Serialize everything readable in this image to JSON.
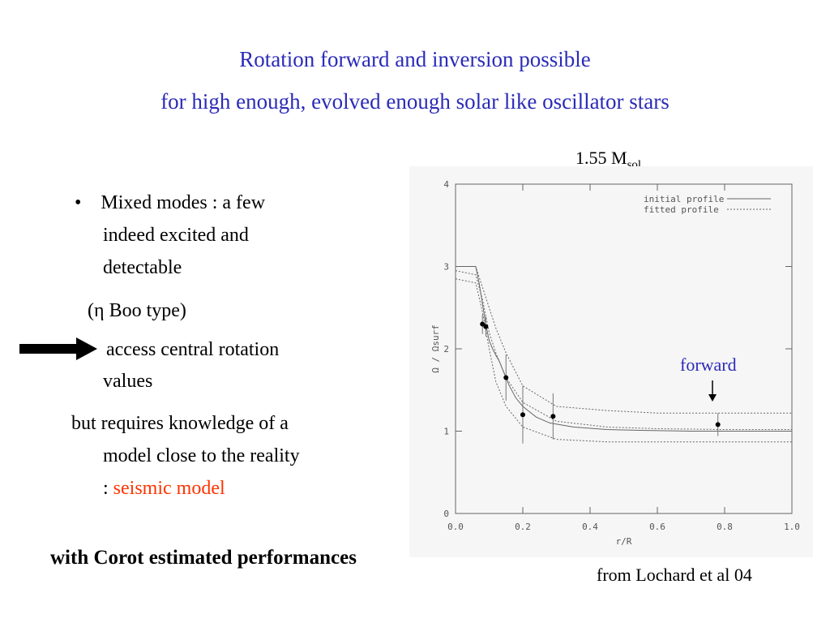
{
  "slide": {
    "title_line1": "Rotation forward and inversion  possible",
    "title_line2": "for high enough, evolved enough solar like oscillator stars",
    "mass_label": "1.55 M",
    "mass_sub": "sol",
    "bullet1_l1": "Mixed modes : a few",
    "bullet1_l2": "indeed excited and",
    "bullet1_l3": "detectable",
    "eta_pre": "(",
    "eta_sym": "η",
    "eta_post": " Boo type)",
    "access_l1": "access central rotation",
    "access_l2": "values",
    "but_l1": "but requires knowledge of a",
    "but_l2": "model close to the reality",
    "but_l3_pre": ": ",
    "but_l3_red": "seismic model",
    "bottom": "with Corot estimated performances",
    "credit": "from Lochard et al 04",
    "bullet_glyph": "•"
  },
  "colors": {
    "title": "#2b2bb8",
    "highlight": "#ff3300",
    "annotation": "#2b2bb8"
  },
  "chart_data": {
    "type": "line",
    "xlabel": "r/R",
    "ylabel": "Ω / Ωsurf",
    "xlim": [
      0.0,
      1.0
    ],
    "ylim": [
      0,
      4
    ],
    "xticks": [
      "0.0",
      "0.2",
      "0.4",
      "0.6",
      "0.8",
      "1.0"
    ],
    "yticks": [
      "0",
      "1",
      "2",
      "3",
      "4"
    ],
    "legend": [
      "initial profile",
      "fitted profile"
    ],
    "legend_position": "top-right",
    "annotation": "forward",
    "series": [
      {
        "name": "initial profile",
        "style": "solid",
        "x": [
          0.0,
          0.06,
          0.07,
          0.08,
          0.09,
          0.1,
          0.11,
          0.12,
          0.13,
          0.14,
          0.16,
          0.18,
          0.2,
          0.24,
          0.28,
          0.35,
          0.45,
          0.55,
          0.7,
          1.0
        ],
        "y": [
          3.0,
          3.0,
          2.8,
          2.55,
          2.3,
          2.1,
          2.0,
          1.92,
          1.85,
          1.75,
          1.55,
          1.4,
          1.3,
          1.17,
          1.1,
          1.05,
          1.02,
          1.01,
          1.0,
          1.0
        ]
      },
      {
        "name": "fitted profile",
        "style": "dotted",
        "x": [
          0.0,
          0.06,
          0.08,
          0.1,
          0.12,
          0.15,
          0.2,
          0.3,
          0.45,
          0.6,
          0.8,
          1.0
        ],
        "y": [
          2.95,
          2.9,
          2.6,
          2.2,
          1.95,
          1.65,
          1.35,
          1.12,
          1.05,
          1.03,
          1.02,
          1.02
        ]
      },
      {
        "name": "upper band",
        "style": "dotted",
        "x": [
          0.0,
          0.06,
          0.08,
          0.1,
          0.12,
          0.15,
          0.2,
          0.3,
          0.45,
          0.6,
          0.8,
          1.0
        ],
        "y": [
          3.0,
          3.0,
          2.75,
          2.5,
          2.25,
          1.95,
          1.55,
          1.3,
          1.25,
          1.22,
          1.22,
          1.22
        ]
      },
      {
        "name": "lower band",
        "style": "dotted",
        "x": [
          0.0,
          0.06,
          0.08,
          0.1,
          0.12,
          0.15,
          0.2,
          0.3,
          0.45,
          0.6,
          0.8,
          1.0
        ],
        "y": [
          2.85,
          2.8,
          2.45,
          2.0,
          1.6,
          1.3,
          1.05,
          0.9,
          0.87,
          0.87,
          0.87,
          0.87
        ]
      }
    ],
    "points": [
      {
        "x": 0.08,
        "y": 2.3,
        "err": 0.12
      },
      {
        "x": 0.09,
        "y": 2.27,
        "err": 0.12
      },
      {
        "x": 0.15,
        "y": 1.65,
        "err": 0.28
      },
      {
        "x": 0.2,
        "y": 1.2,
        "err": 0.35
      },
      {
        "x": 0.29,
        "y": 1.18,
        "err": 0.28
      },
      {
        "x": 0.78,
        "y": 1.08,
        "err": 0.14
      }
    ]
  }
}
